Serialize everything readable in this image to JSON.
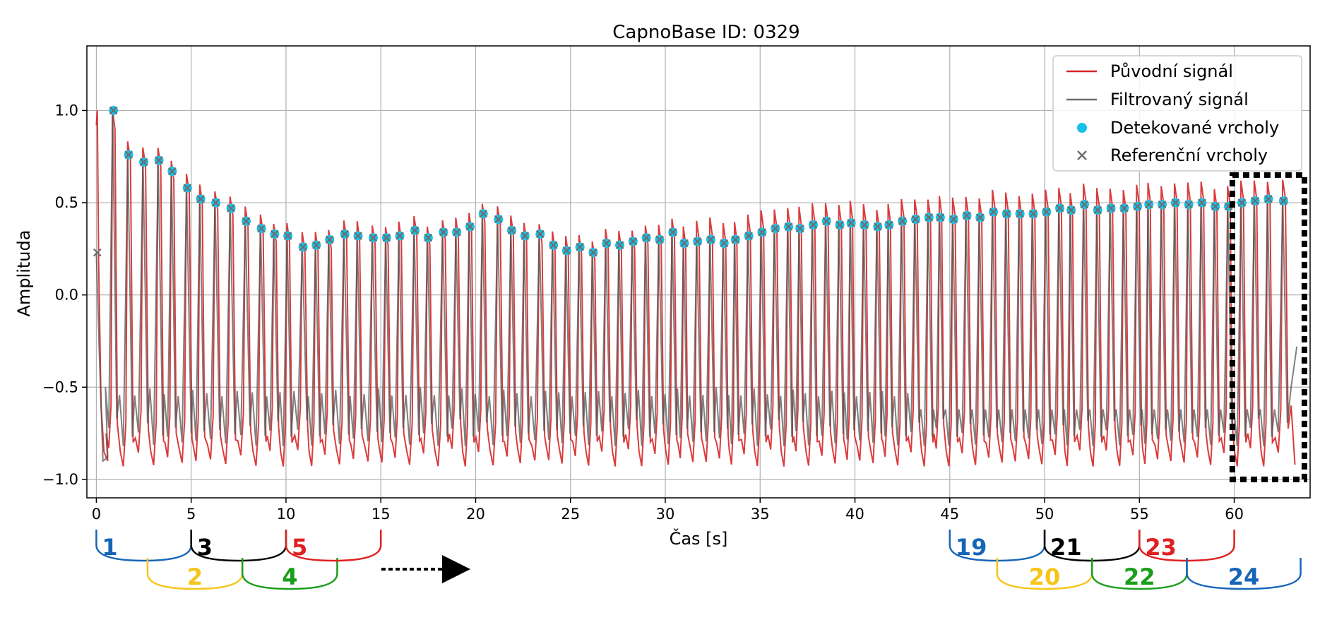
{
  "chart_data": {
    "type": "line",
    "title": "CapnoBase ID: 0329",
    "xlabel": "Čas [s]",
    "ylabel": "Amplituda",
    "xlim": [
      -0.5,
      64
    ],
    "ylim": [
      -1.1,
      1.35
    ],
    "xticks": [
      0,
      5,
      10,
      15,
      20,
      25,
      30,
      35,
      40,
      45,
      50,
      55,
      60
    ],
    "xtick_labels": [
      "0",
      "5",
      "10",
      "15",
      "20",
      "25",
      "30",
      "35",
      "40",
      "45",
      "50",
      "55",
      "60"
    ],
    "yticks": [
      -1.0,
      -0.5,
      0.0,
      0.5,
      1.0
    ],
    "ytick_labels": [
      "−1.0",
      "−0.5",
      "0.0",
      "0.5",
      "1.0"
    ],
    "grid": true,
    "legend_position": "top-right",
    "series": [
      {
        "name": "Původní signál",
        "color": "#d62728",
        "kind": "line"
      },
      {
        "name": "Filtrovaný signál",
        "color": "#6e6e6e",
        "kind": "line"
      },
      {
        "name": "Detekované vrcholy",
        "color": "#18bfe6",
        "kind": "scatter-dot"
      },
      {
        "name": "Referenční vrcholy",
        "color": "#6e6e6e",
        "kind": "scatter-x"
      }
    ],
    "peaks": {
      "x": [
        0.9,
        1.7,
        2.5,
        3.3,
        4.0,
        4.8,
        5.5,
        6.3,
        7.1,
        7.9,
        8.7,
        9.4,
        10.1,
        10.9,
        11.6,
        12.3,
        13.1,
        13.8,
        14.6,
        15.3,
        16.0,
        16.8,
        17.5,
        18.3,
        19.0,
        19.7,
        20.4,
        21.2,
        21.9,
        22.6,
        23.4,
        24.1,
        24.8,
        25.5,
        26.2,
        26.9,
        27.6,
        28.3,
        29.0,
        29.7,
        30.4,
        31.0,
        31.7,
        32.4,
        33.1,
        33.7,
        34.4,
        35.1,
        35.8,
        36.5,
        37.1,
        37.8,
        38.5,
        39.2,
        39.8,
        40.5,
        41.2,
        41.8,
        42.5,
        43.2,
        43.9,
        44.5,
        45.2,
        45.9,
        46.6,
        47.3,
        48.0,
        48.7,
        49.4,
        50.1,
        50.8,
        51.4,
        52.1,
        52.8,
        53.5,
        54.2,
        54.9,
        55.5,
        56.2,
        56.9,
        57.6,
        58.3,
        59.0,
        59.7,
        60.4,
        61.1,
        61.8,
        62.6
      ],
      "y": [
        1.0,
        0.76,
        0.72,
        0.73,
        0.67,
        0.58,
        0.52,
        0.5,
        0.47,
        0.4,
        0.36,
        0.33,
        0.32,
        0.26,
        0.27,
        0.3,
        0.33,
        0.32,
        0.31,
        0.31,
        0.32,
        0.35,
        0.31,
        0.34,
        0.34,
        0.37,
        0.44,
        0.41,
        0.35,
        0.32,
        0.33,
        0.27,
        0.24,
        0.26,
        0.23,
        0.28,
        0.27,
        0.29,
        0.31,
        0.3,
        0.34,
        0.28,
        0.29,
        0.3,
        0.28,
        0.3,
        0.32,
        0.34,
        0.36,
        0.37,
        0.36,
        0.38,
        0.4,
        0.38,
        0.39,
        0.38,
        0.37,
        0.38,
        0.4,
        0.41,
        0.42,
        0.42,
        0.41,
        0.43,
        0.42,
        0.45,
        0.44,
        0.44,
        0.44,
        0.45,
        0.47,
        0.46,
        0.49,
        0.46,
        0.47,
        0.47,
        0.48,
        0.49,
        0.49,
        0.5,
        0.49,
        0.5,
        0.48,
        0.48,
        0.5,
        0.51,
        0.52,
        0.51
      ]
    },
    "highlight_box": {
      "x": [
        59.9,
        63.7
      ],
      "y": [
        -1.0,
        0.65
      ],
      "style": "dotted"
    },
    "segments": [
      {
        "label": "1",
        "x": [
          0,
          5
        ],
        "row": 1,
        "color": "#1565b8"
      },
      {
        "label": "2",
        "x": [
          2.7,
          7.7
        ],
        "row": 2,
        "color": "#f5c518"
      },
      {
        "label": "3",
        "x": [
          5,
          10
        ],
        "row": 1,
        "color": "#000000"
      },
      {
        "label": "4",
        "x": [
          7.7,
          12.7
        ],
        "row": 2,
        "color": "#1a9e1a"
      },
      {
        "label": "5",
        "x": [
          10,
          15
        ],
        "row": 1,
        "color": "#e02020"
      },
      {
        "label": "19",
        "x": [
          45,
          50
        ],
        "row": 1,
        "color": "#1565b8"
      },
      {
        "label": "20",
        "x": [
          47.5,
          52.5
        ],
        "row": 2,
        "color": "#f5c518"
      },
      {
        "label": "21",
        "x": [
          50,
          55
        ],
        "row": 1,
        "color": "#000000"
      },
      {
        "label": "22",
        "x": [
          52.5,
          57.5
        ],
        "row": 2,
        "color": "#1a9e1a"
      },
      {
        "label": "23",
        "x": [
          55,
          60
        ],
        "row": 1,
        "color": "#e02020"
      },
      {
        "label": "24",
        "x": [
          57.5,
          63.5
        ],
        "row": 2,
        "color": "#1565b8"
      }
    ]
  }
}
